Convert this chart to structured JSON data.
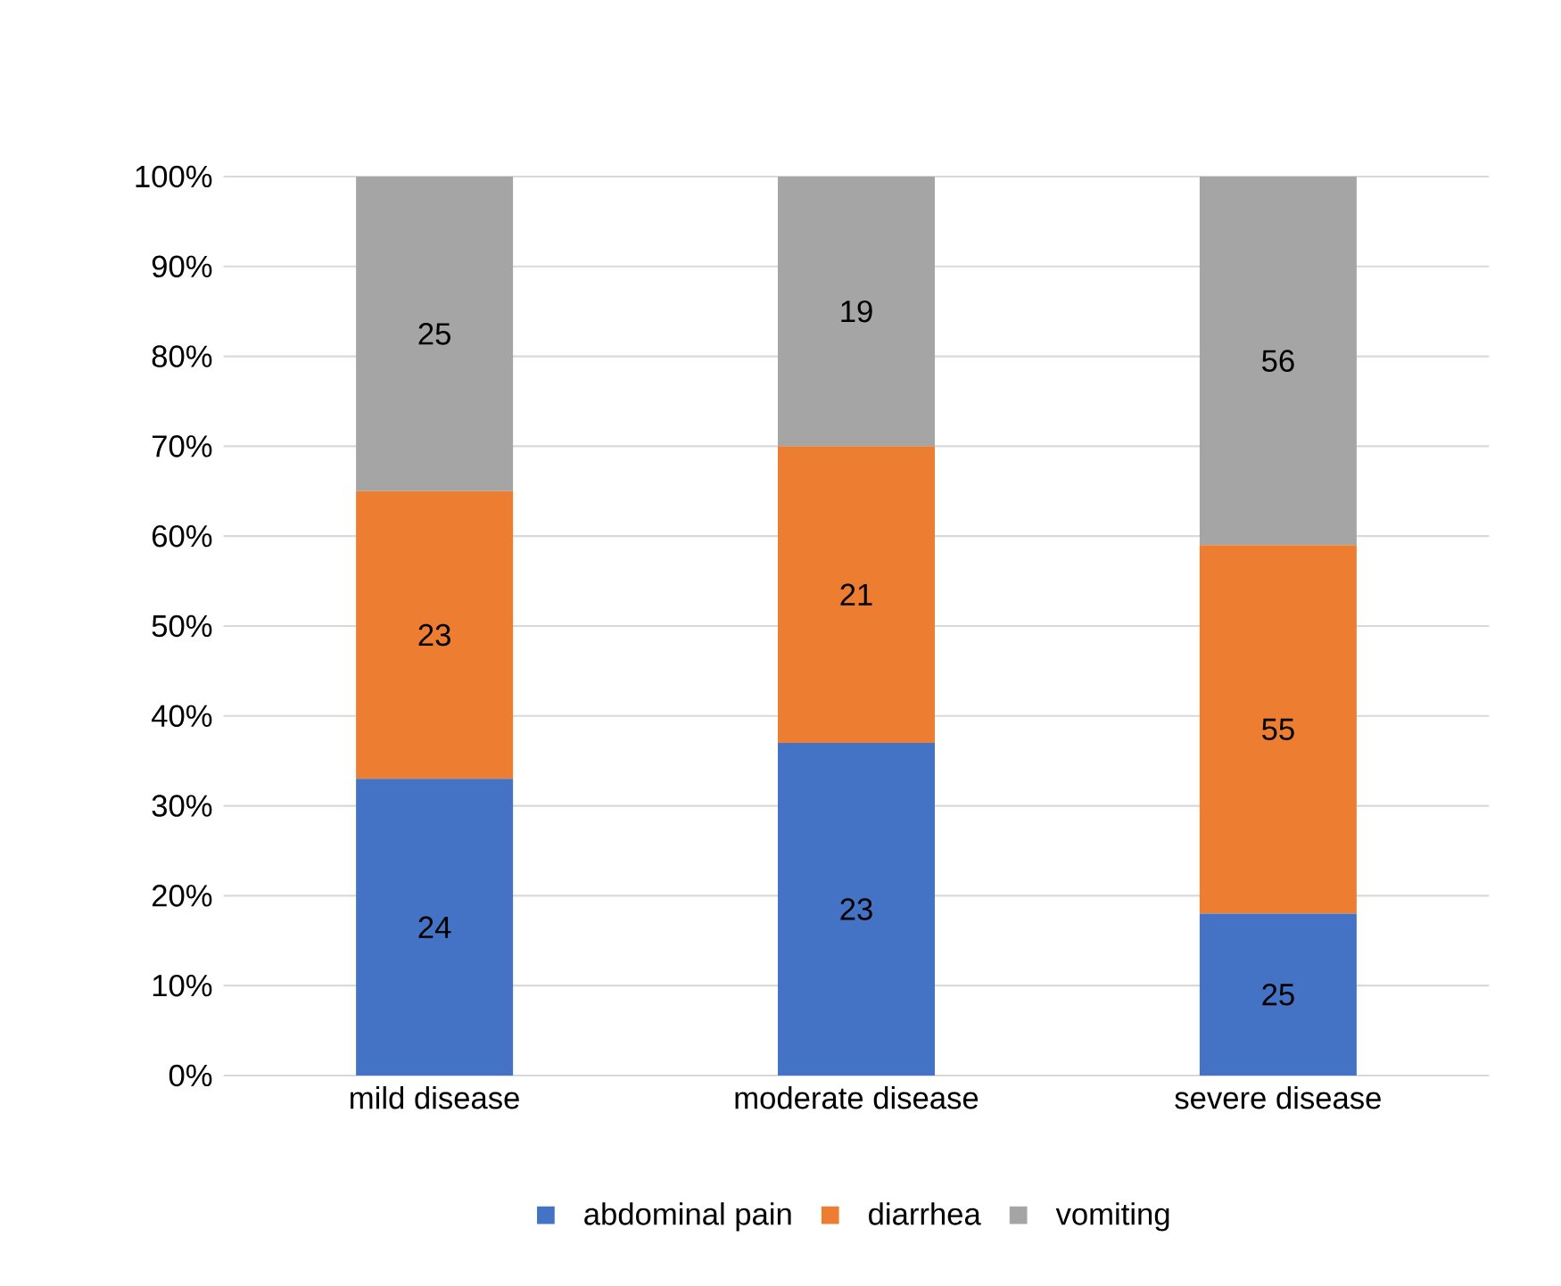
{
  "chart_data": {
    "type": "bar",
    "stacked": true,
    "categories": [
      "mild disease",
      "moderate disease",
      "severe disease"
    ],
    "series": [
      {
        "name": "abdominal pain",
        "color": "#4472c4",
        "values": [
          33,
          37,
          18
        ]
      },
      {
        "name": "diarrhea",
        "color": "#ed7d31",
        "values": [
          32,
          33,
          41
        ]
      },
      {
        "name": "vomiting",
        "color": "#a5a5a5",
        "values": [
          35,
          30,
          41
        ]
      }
    ],
    "annotations": [
      "24",
      "23",
      "25",
      "23",
      "21",
      "55",
      "25",
      "19",
      "56"
    ],
    "ylim": [
      0,
      100
    ],
    "yticks": [
      {
        "value": 0,
        "label": "0%"
      },
      {
        "value": 10,
        "label": "10%"
      },
      {
        "value": 20,
        "label": "20%"
      },
      {
        "value": 30,
        "label": "30%"
      },
      {
        "value": 40,
        "label": "40%"
      },
      {
        "value": 50,
        "label": "50%"
      },
      {
        "value": 60,
        "label": "60%"
      },
      {
        "value": 70,
        "label": "70%"
      },
      {
        "value": 80,
        "label": "80%"
      },
      {
        "value": 90,
        "label": "90%"
      },
      {
        "value": 100,
        "label": "100%"
      }
    ],
    "grid": "y",
    "legend": "bottom"
  }
}
